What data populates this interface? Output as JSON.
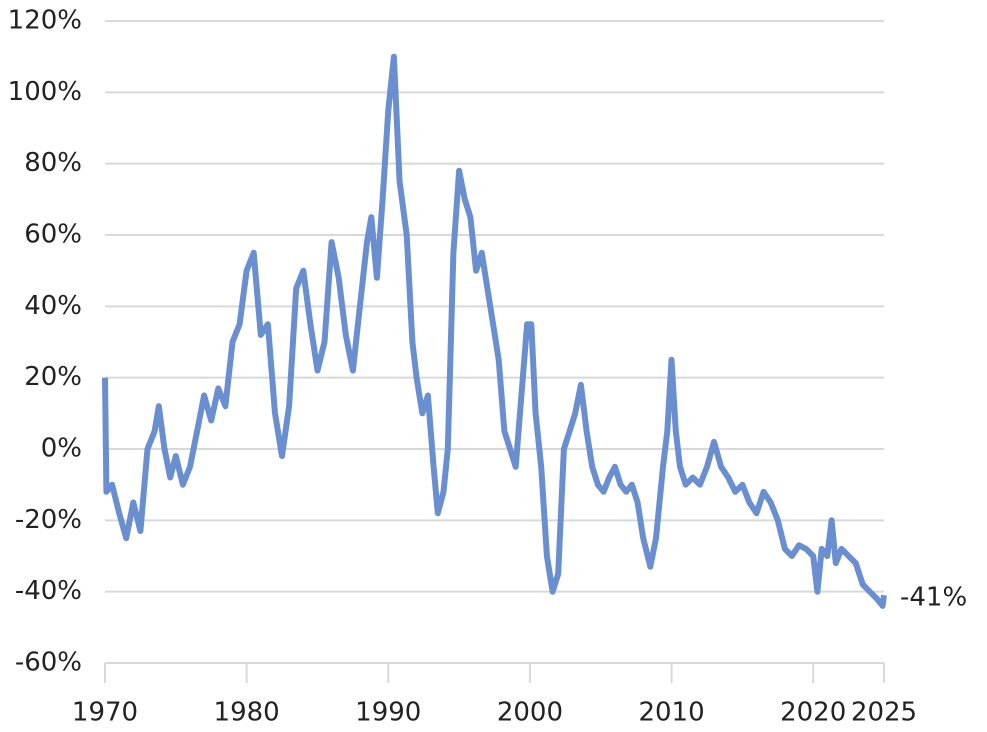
{
  "chart_data": {
    "type": "line",
    "x": [
      1970.0,
      1970.1,
      1970.5,
      1971.0,
      1971.5,
      1972.0,
      1972.5,
      1973.0,
      1973.5,
      1973.8,
      1974.2,
      1974.6,
      1975.0,
      1975.5,
      1976.0,
      1976.5,
      1977.0,
      1977.5,
      1978.0,
      1978.5,
      1979.0,
      1979.5,
      1980.0,
      1980.5,
      1981.0,
      1981.5,
      1982.0,
      1982.5,
      1983.0,
      1983.5,
      1984.0,
      1984.5,
      1985.0,
      1985.5,
      1986.0,
      1986.5,
      1987.0,
      1987.5,
      1988.0,
      1988.5,
      1988.8,
      1989.2,
      1989.6,
      1990.0,
      1990.4,
      1990.8,
      1991.3,
      1991.7,
      1992.0,
      1992.4,
      1992.8,
      1993.2,
      1993.5,
      1993.9,
      1994.2,
      1994.6,
      1995.0,
      1995.4,
      1995.8,
      1996.2,
      1996.6,
      1997.0,
      1997.4,
      1997.8,
      1998.2,
      1998.6,
      1999.0,
      1999.4,
      1999.8,
      2000.1,
      2000.4,
      2000.8,
      2001.2,
      2001.6,
      2002.0,
      2002.4,
      2002.8,
      2003.2,
      2003.6,
      2004.0,
      2004.4,
      2004.8,
      2005.2,
      2005.6,
      2006.0,
      2006.4,
      2006.8,
      2007.2,
      2007.6,
      2008.0,
      2008.5,
      2008.9,
      2009.4,
      2009.7,
      2010.0,
      2010.3,
      2010.6,
      2011.0,
      2011.5,
      2012.0,
      2012.5,
      2013.0,
      2013.5,
      2014.0,
      2014.5,
      2015.0,
      2015.5,
      2016.0,
      2016.5,
      2017.0,
      2017.5,
      2018.0,
      2018.5,
      2019.0,
      2019.5,
      2020.0,
      2020.3,
      2020.6,
      2021.0,
      2021.3,
      2021.6,
      2022.0,
      2022.5,
      2023.0,
      2023.5,
      2024.0,
      2024.5,
      2024.9,
      2025.0
    ],
    "series": [
      {
        "color": "#6a8fd0",
        "values": [
          20,
          -12,
          -10,
          -18,
          -25,
          -15,
          -23,
          0,
          5,
          12,
          0,
          -8,
          -2,
          -10,
          -5,
          5,
          15,
          8,
          17,
          12,
          30,
          35,
          50,
          55,
          32,
          35,
          10,
          -2,
          12,
          45,
          50,
          35,
          22,
          30,
          58,
          48,
          32,
          22,
          40,
          58,
          65,
          48,
          70,
          95,
          110,
          75,
          60,
          30,
          20,
          10,
          15,
          -5,
          -18,
          -12,
          0,
          55,
          78,
          70,
          65,
          50,
          55,
          45,
          35,
          25,
          5,
          0,
          -5,
          15,
          35,
          35,
          10,
          -5,
          -30,
          -40,
          -35,
          0,
          5,
          10,
          18,
          5,
          -5,
          -10,
          -12,
          -8,
          -5,
          -10,
          -12,
          -10,
          -15,
          -25,
          -33,
          -25,
          -5,
          5,
          25,
          5,
          -5,
          -10,
          -8,
          -10,
          -5,
          2,
          -5,
          -8,
          -12,
          -10,
          -15,
          -18,
          -12,
          -15,
          -20,
          -28,
          -30,
          -27,
          -28,
          -30,
          -40,
          -28,
          -30,
          -20,
          -32,
          -28,
          -30,
          -32,
          -38,
          -40,
          -42,
          -44,
          -41
        ]
      }
    ],
    "xlim": [
      1970,
      2025
    ],
    "xticks": [
      1970,
      1980,
      1990,
      2000,
      2010,
      2020,
      2025
    ],
    "ylim": [
      -60,
      120
    ],
    "yticks": [
      {
        "value": -60,
        "label": "-60%"
      },
      {
        "value": -40,
        "label": "-40%"
      },
      {
        "value": -20,
        "label": "-20%"
      },
      {
        "value": 0,
        "label": "0%"
      },
      {
        "value": 20,
        "label": "20%"
      },
      {
        "value": 40,
        "label": "40%"
      },
      {
        "value": 60,
        "label": "60%"
      },
      {
        "value": 80,
        "label": "80%"
      },
      {
        "value": 100,
        "label": "100%"
      },
      {
        "value": 120,
        "label": "120%"
      }
    ],
    "grid": true,
    "annotation": "-41%"
  }
}
